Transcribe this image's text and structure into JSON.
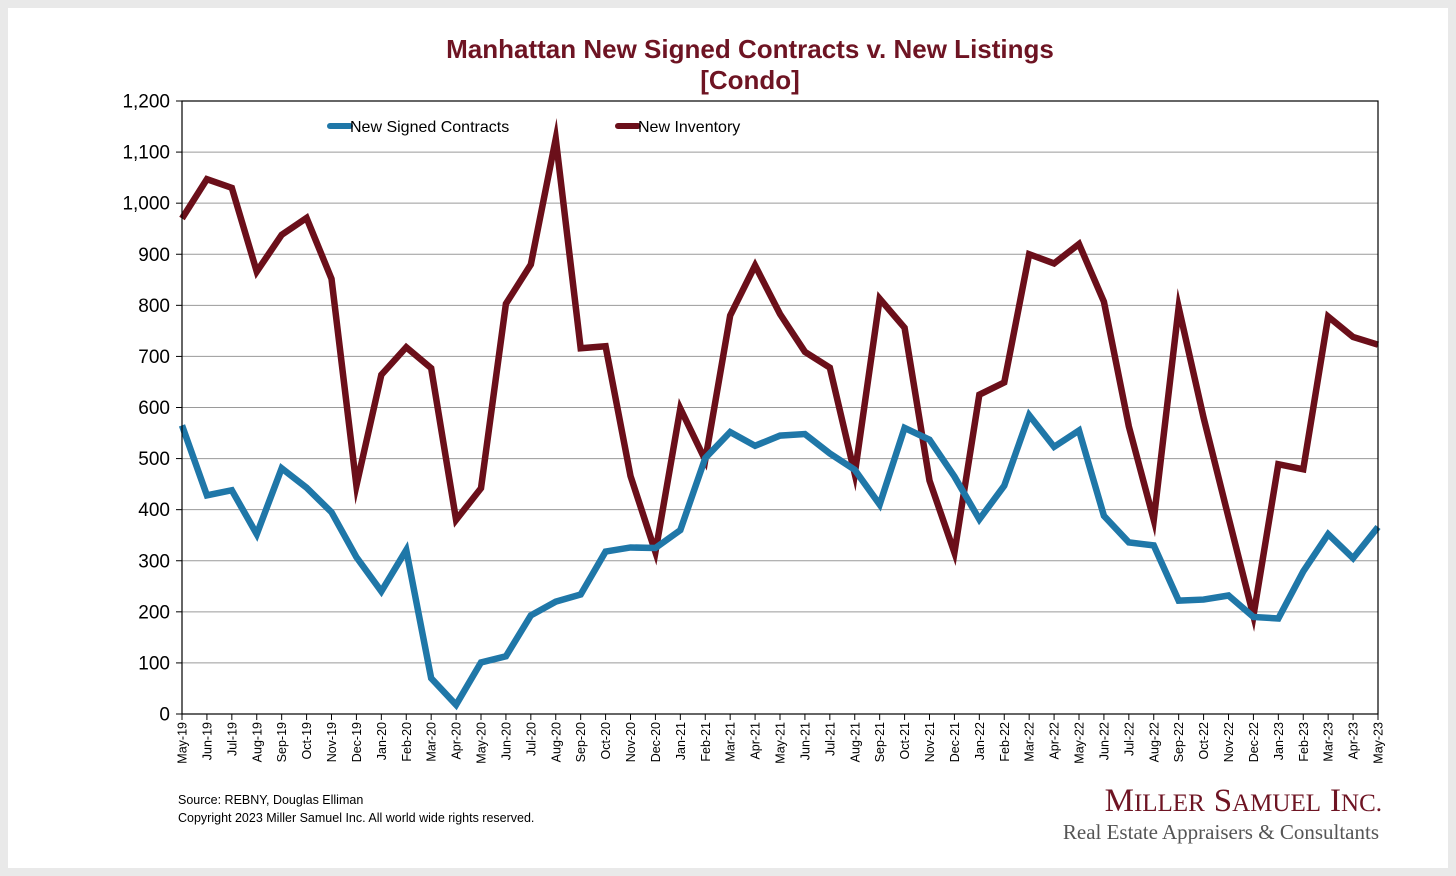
{
  "chart_data": {
    "type": "line",
    "title": "Manhattan New Signed Contracts v. New Listings",
    "subtitle": "[Condo]",
    "xlabel": "",
    "ylabel": "",
    "ylim": [
      0,
      1200
    ],
    "yticks": [
      0,
      100,
      200,
      300,
      400,
      500,
      600,
      700,
      800,
      900,
      1000,
      1100,
      1200
    ],
    "ytick_labels": [
      "0",
      "100",
      "200",
      "300",
      "400",
      "500",
      "600",
      "700",
      "800",
      "900",
      "1,000",
      "1,100",
      "1,200"
    ],
    "grid": true,
    "legend_position": "top",
    "categories": [
      "May-19",
      "Jun-19",
      "Jul-19",
      "Aug-19",
      "Sep-19",
      "Oct-19",
      "Nov-19",
      "Dec-19",
      "Jan-20",
      "Feb-20",
      "Mar-20",
      "Apr-20",
      "May-20",
      "Jun-20",
      "Jul-20",
      "Aug-20",
      "Sep-20",
      "Oct-20",
      "Nov-20",
      "Dec-20",
      "Jan-21",
      "Feb-21",
      "Mar-21",
      "Apr-21",
      "May-21",
      "Jun-21",
      "Jul-21",
      "Aug-21",
      "Sep-21",
      "Oct-21",
      "Nov-21",
      "Dec-21",
      "Jan-22",
      "Feb-22",
      "Mar-22",
      "Apr-22",
      "May-22",
      "Jun-22",
      "Jul-22",
      "Aug-22",
      "Sep-22",
      "Oct-22",
      "Nov-22",
      "Dec-22",
      "Jan-23",
      "Feb-23",
      "Mar-23",
      "Apr-23",
      "May-23"
    ],
    "series": [
      {
        "name": "New Signed Contracts",
        "color": "#1f77a8",
        "values": [
          565,
          428,
          438,
          352,
          481,
          443,
          395,
          307,
          240,
          321,
          70,
          18,
          101,
          113,
          193,
          220,
          234,
          318,
          326,
          325,
          360,
          501,
          552,
          525,
          545,
          548,
          510,
          478,
          410,
          560,
          537,
          465,
          381,
          447,
          585,
          523,
          555,
          388,
          336,
          330,
          222,
          224,
          232,
          190,
          187,
          279,
          352,
          305,
          366
        ]
      },
      {
        "name": "New Inventory",
        "color": "#6b0f1a",
        "values": [
          970,
          1047,
          1030,
          866,
          938,
          971,
          852,
          447,
          664,
          718,
          677,
          380,
          442,
          803,
          880,
          1126,
          716,
          720,
          466,
          317,
          598,
          497,
          780,
          878,
          783,
          709,
          678,
          470,
          813,
          756,
          457,
          316,
          625,
          649,
          900,
          882,
          920,
          807,
          563,
          380,
          796,
          580,
          385,
          192,
          489,
          479,
          778,
          738,
          723
        ]
      }
    ]
  },
  "footer": {
    "source": "Source: REBNY, Douglas Elliman",
    "copyright": "Copyright 2023 Miller Samuel Inc.  All world wide rights reserved."
  },
  "brand": {
    "name_initial_1": "M",
    "name_rest_1": "ILLER",
    "name_initial_2": "S",
    "name_rest_2": "AMUEL",
    "name_initial_3": "I",
    "name_rest_3": "NC.",
    "tagline": "Real Estate Appraisers & Consultants"
  }
}
